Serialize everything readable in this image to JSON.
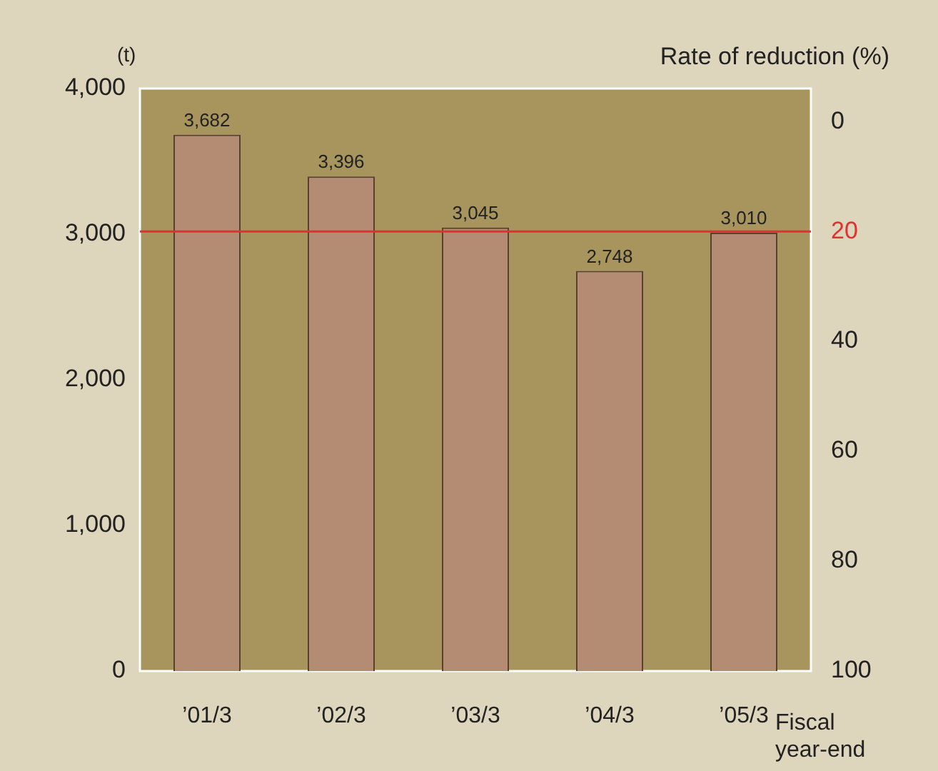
{
  "chart_data": {
    "type": "bar",
    "ylabel": "(t)",
    "y2label": "Rate of reduction (%)",
    "xlabel": "Fiscal year-end",
    "categories": [
      "’01/3",
      "’02/3",
      "’03/3",
      "’04/3",
      "’05/3"
    ],
    "values": [
      3682,
      3396,
      3045,
      2748,
      3010
    ],
    "value_labels": [
      "3,682",
      "3,396",
      "3,045",
      "2,748",
      "3,010"
    ],
    "color": "#b38c73",
    "ylim": [
      0,
      4000
    ],
    "yticks": [
      0,
      {
        "value": 1000,
        "label": "1,000"
      },
      {
        "value": 2000,
        "label": "2,000"
      },
      {
        "value": 3000,
        "label": "3,000"
      },
      {
        "value": 4000,
        "label": "4,000"
      }
    ],
    "y2lim": [
      100,
      -6
    ],
    "y2ticks": [
      0,
      20,
      40,
      60,
      80,
      100
    ],
    "ref_lines": [
      {
        "axis": "y2",
        "value": 20,
        "color": "#e03030"
      }
    ],
    "grid": false,
    "legend": false
  }
}
